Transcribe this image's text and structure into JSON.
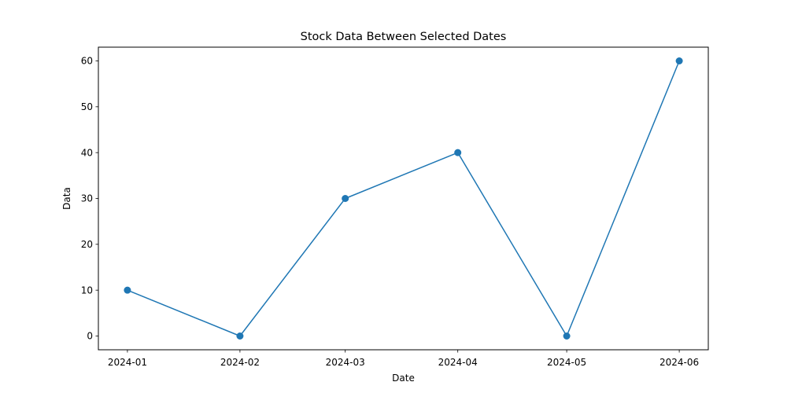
{
  "chart_data": {
    "type": "line",
    "title": "Stock Data Between Selected Dates",
    "xlabel": "Date",
    "ylabel": "Data",
    "x": [
      "2024-01-01",
      "2024-02-01",
      "2024-03-01",
      "2024-04-01",
      "2024-05-01",
      "2024-06-01"
    ],
    "x_tick_labels": [
      "2024-01",
      "2024-02",
      "2024-03",
      "2024-04",
      "2024-05",
      "2024-06"
    ],
    "series": [
      {
        "values": [
          10,
          0,
          30,
          40,
          0,
          60
        ],
        "color": "#1f77b4",
        "marker": "circle"
      }
    ],
    "y_ticks": [
      0,
      10,
      20,
      30,
      40,
      50,
      60
    ],
    "ylim": [
      -3,
      63
    ],
    "xlim": [
      "2023-12-24",
      "2024-06-09"
    ],
    "grid": false,
    "legend": false
  }
}
